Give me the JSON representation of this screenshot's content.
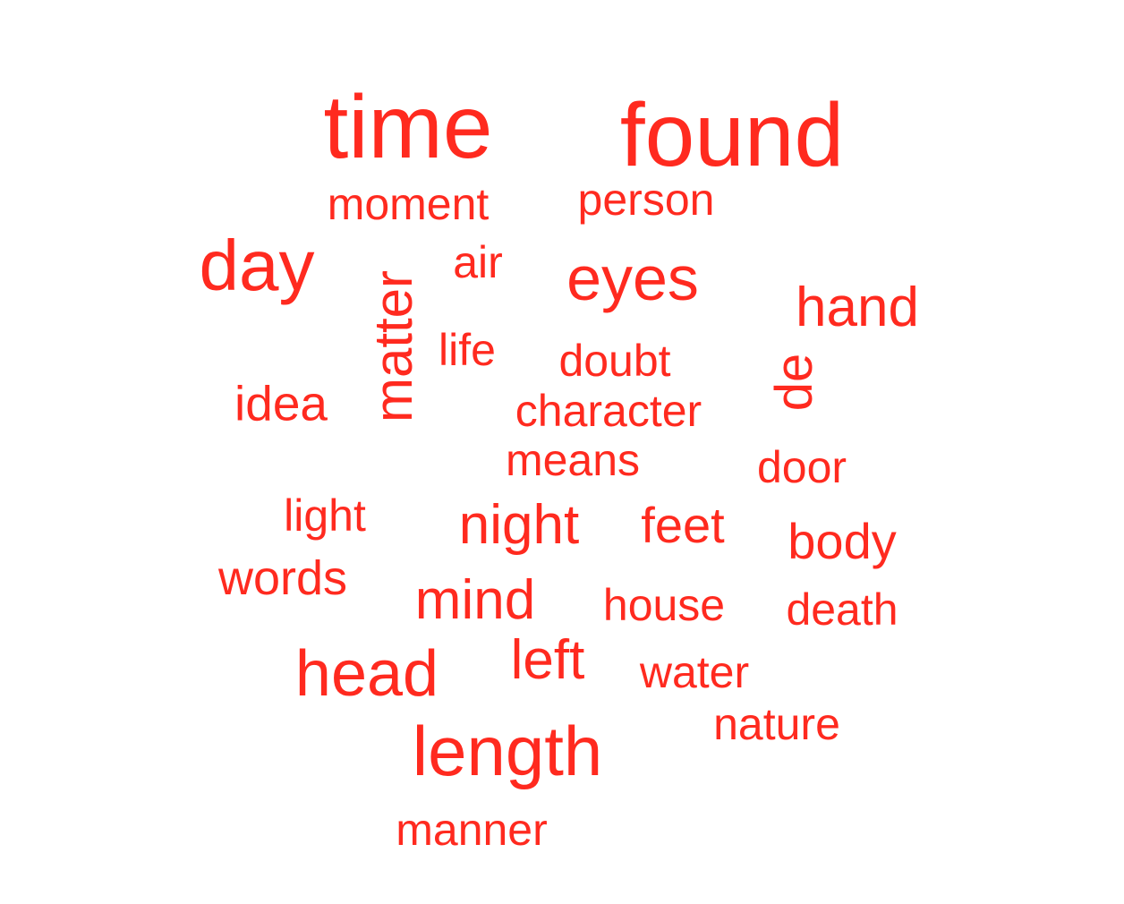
{
  "word_color": "#ff2a1f",
  "words": [
    {
      "text": "time"
    },
    {
      "text": "found"
    },
    {
      "text": "moment"
    },
    {
      "text": "person"
    },
    {
      "text": "day"
    },
    {
      "text": "air"
    },
    {
      "text": "eyes"
    },
    {
      "text": "matter",
      "orientation": "vertical"
    },
    {
      "text": "hand"
    },
    {
      "text": "life"
    },
    {
      "text": "doubt"
    },
    {
      "text": "de",
      "orientation": "vertical"
    },
    {
      "text": "idea"
    },
    {
      "text": "character"
    },
    {
      "text": "means"
    },
    {
      "text": "door"
    },
    {
      "text": "light"
    },
    {
      "text": "night"
    },
    {
      "text": "feet"
    },
    {
      "text": "body"
    },
    {
      "text": "words"
    },
    {
      "text": "mind"
    },
    {
      "text": "house"
    },
    {
      "text": "death"
    },
    {
      "text": "head"
    },
    {
      "text": "left"
    },
    {
      "text": "water"
    },
    {
      "text": "nature"
    },
    {
      "text": "length"
    },
    {
      "text": "manner"
    }
  ]
}
